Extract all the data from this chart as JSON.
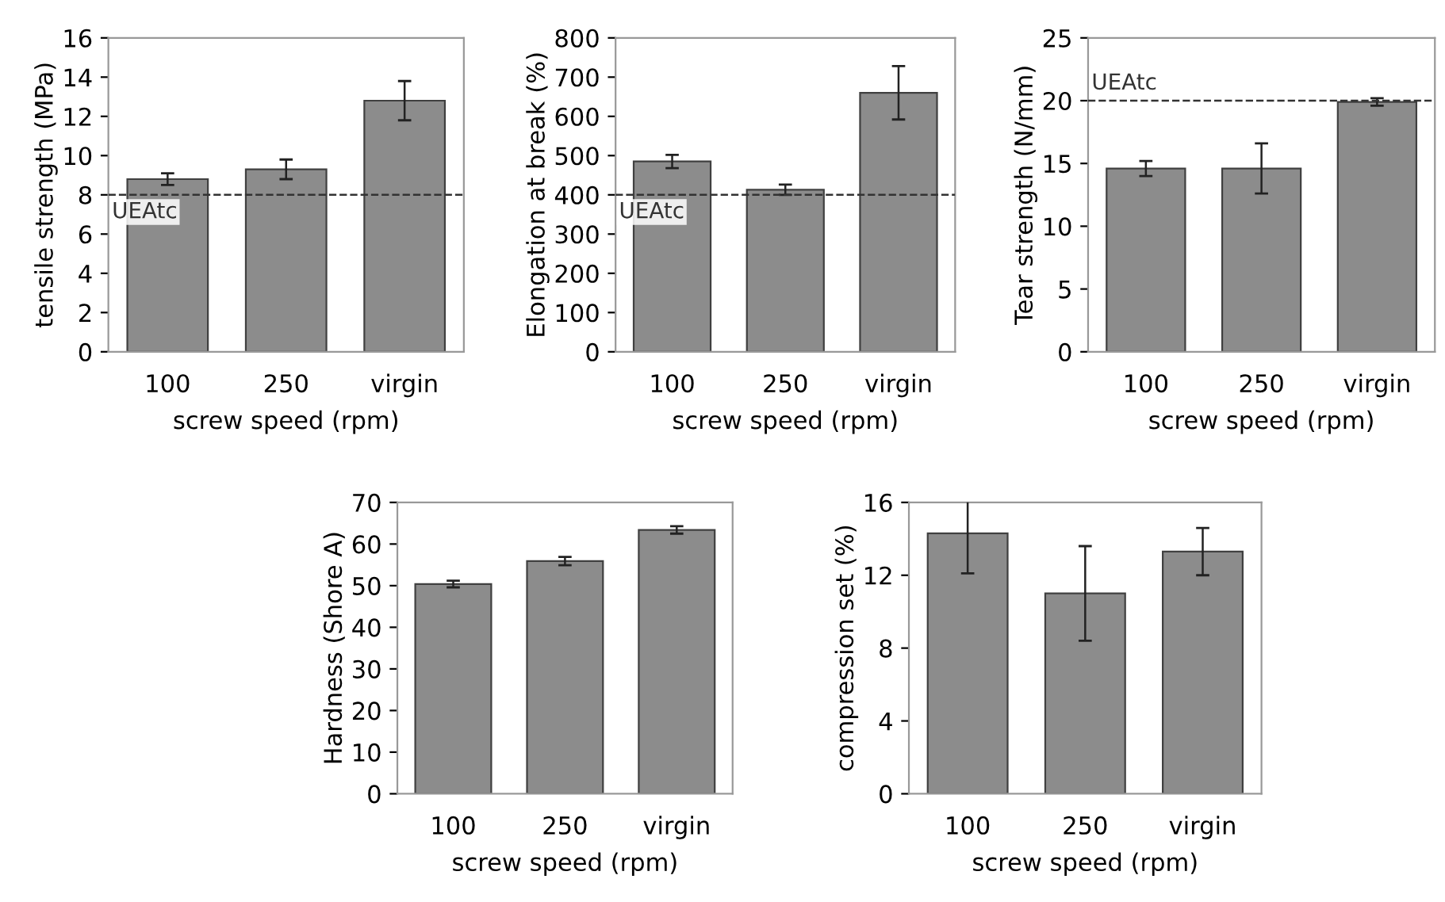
{
  "chart_data": [
    {
      "type": "bar",
      "categories": [
        "100",
        "250",
        "virgin"
      ],
      "values": [
        8.8,
        9.3,
        12.8
      ],
      "errors": [
        0.3,
        0.5,
        1.0
      ],
      "color": "#8c8c8c",
      "xlabel": "screw speed (rpm)",
      "ylabel": "tensile strength (MPa)",
      "ylim": [
        0,
        16
      ],
      "yticks": [
        0,
        2,
        4,
        6,
        8,
        10,
        12,
        14,
        16
      ],
      "ref_lines": [
        {
          "axis": "y",
          "value": 8,
          "label": "UEAtc",
          "line_style": "dashed"
        }
      ],
      "grid": false,
      "legend": false
    },
    {
      "type": "bar",
      "categories": [
        "100",
        "250",
        "virgin"
      ],
      "values": [
        485,
        413,
        660
      ],
      "errors": [
        17,
        13,
        68
      ],
      "color": "#8c8c8c",
      "xlabel": "screw speed (rpm)",
      "ylabel": "Elongation at break (%)",
      "ylim": [
        0,
        800
      ],
      "yticks": [
        0,
        100,
        200,
        300,
        400,
        500,
        600,
        700,
        800
      ],
      "ref_lines": [
        {
          "axis": "y",
          "value": 400,
          "label": "UEAtc",
          "line_style": "dashed"
        }
      ],
      "grid": false,
      "legend": false
    },
    {
      "type": "bar",
      "categories": [
        "100",
        "250",
        "virgin"
      ],
      "values": [
        14.6,
        14.6,
        19.9
      ],
      "errors": [
        0.6,
        2.0,
        0.3
      ],
      "color": "#8c8c8c",
      "xlabel": "screw speed (rpm)",
      "ylabel": "Tear strength (N/mm)",
      "ylim": [
        0,
        25
      ],
      "yticks": [
        0,
        5,
        10,
        15,
        20,
        25
      ],
      "ref_lines": [
        {
          "axis": "y",
          "value": 20,
          "label": "UEAtc",
          "line_style": "dashed"
        }
      ],
      "grid": false,
      "legend": false
    },
    {
      "type": "bar",
      "categories": [
        "100",
        "250",
        "virgin"
      ],
      "values": [
        50.4,
        55.9,
        63.4
      ],
      "errors": [
        0.8,
        1.0,
        0.9
      ],
      "color": "#8c8c8c",
      "xlabel": "screw speed (rpm)",
      "ylabel": "Hardness (Shore A)",
      "ylim": [
        0,
        70
      ],
      "yticks": [
        0,
        10,
        20,
        30,
        40,
        50,
        60,
        70
      ],
      "grid": false,
      "legend": false
    },
    {
      "type": "bar",
      "categories": [
        "100",
        "250",
        "virgin"
      ],
      "values": [
        14.3,
        11.0,
        13.3
      ],
      "errors": [
        2.2,
        2.6,
        1.3
      ],
      "color": "#8c8c8c",
      "xlabel": "screw speed (rpm)",
      "ylabel": "compression set (%)",
      "ylim": [
        0,
        16
      ],
      "yticks": [
        0,
        4,
        8,
        12,
        16
      ],
      "grid": false,
      "legend": false
    }
  ]
}
